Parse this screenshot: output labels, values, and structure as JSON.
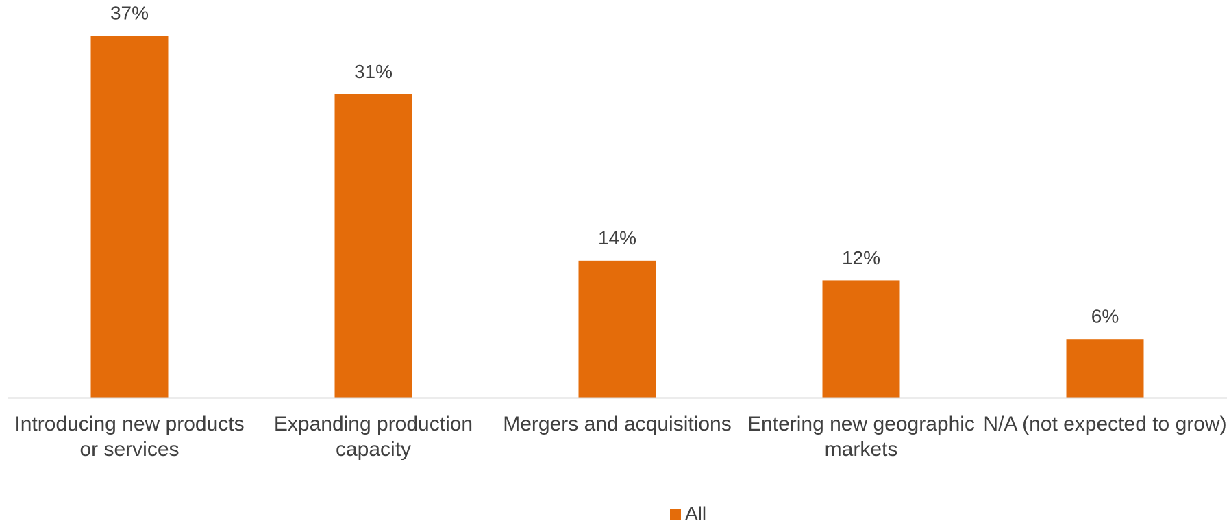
{
  "chart_data": {
    "type": "bar",
    "categories": [
      "Introducing new products or services",
      "Expanding production capacity",
      "Mergers and acquisitions",
      "Entering new geographic markets",
      "N/A (not expected to grow)"
    ],
    "series": [
      {
        "name": "All",
        "color": "#e46c0a",
        "values": [
          37,
          31,
          14,
          12,
          6
        ],
        "value_labels": [
          "37%",
          "31%",
          "14%",
          "12%",
          "6%"
        ]
      }
    ],
    "legend": "bottom"
  }
}
